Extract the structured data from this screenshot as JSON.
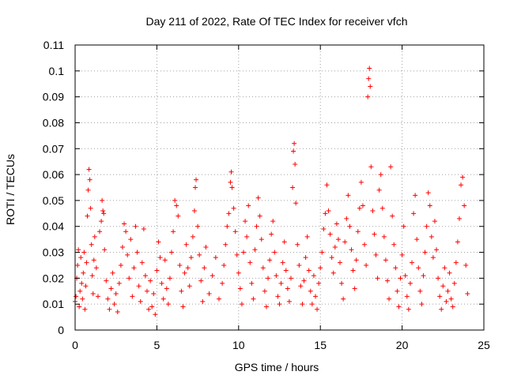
{
  "chart_data": {
    "type": "scatter",
    "title": "Day 211 of 2022, Rate Of TEC Index for receiver vfch",
    "xlabel": "GPS time / hours",
    "ylabel": "ROTI / TECUs",
    "xlim": [
      0,
      25
    ],
    "ylim": [
      0,
      0.11
    ],
    "x_ticks": [
      0,
      5,
      10,
      15,
      20,
      25
    ],
    "x_tick_labels": [
      "0",
      "5",
      "10",
      "15",
      "20",
      "25"
    ],
    "y_ticks": [
      0,
      0.01,
      0.02,
      0.03,
      0.04,
      0.05,
      0.06,
      0.07,
      0.08,
      0.09,
      0.1,
      0.11
    ],
    "y_tick_labels": [
      "0",
      "0.01",
      "0.02",
      "0.03",
      "0.04",
      "0.05",
      "0.06",
      "0.07",
      "0.08",
      "0.09",
      "0.1",
      "0.11"
    ],
    "grid": true,
    "marker": "+",
    "color": "#ff0000",
    "series": [
      {
        "name": "ROTI",
        "points": [
          [
            0.0,
            0.011
          ],
          [
            0.05,
            0.013
          ],
          [
            0.1,
            0.02
          ],
          [
            0.15,
            0.025
          ],
          [
            0.2,
            0.031
          ],
          [
            0.25,
            0.009
          ],
          [
            0.3,
            0.015
          ],
          [
            0.35,
            0.028
          ],
          [
            0.4,
            0.018
          ],
          [
            0.45,
            0.012
          ],
          [
            0.5,
            0.022
          ],
          [
            0.55,
            0.03
          ],
          [
            0.6,
            0.008
          ],
          [
            0.65,
            0.017
          ],
          [
            0.7,
            0.026
          ],
          [
            0.75,
            0.044
          ],
          [
            0.8,
            0.054
          ],
          [
            0.85,
            0.062
          ],
          [
            0.9,
            0.058
          ],
          [
            0.95,
            0.047
          ],
          [
            1.0,
            0.033
          ],
          [
            1.05,
            0.021
          ],
          [
            1.1,
            0.014
          ],
          [
            1.15,
            0.027
          ],
          [
            1.2,
            0.036
          ],
          [
            1.3,
            0.024
          ],
          [
            1.4,
            0.013
          ],
          [
            1.5,
            0.038
          ],
          [
            1.6,
            0.042
          ],
          [
            1.65,
            0.05
          ],
          [
            1.7,
            0.046
          ],
          [
            1.75,
            0.045
          ],
          [
            1.8,
            0.031
          ],
          [
            1.9,
            0.019
          ],
          [
            2.0,
            0.012
          ],
          [
            2.1,
            0.008
          ],
          [
            2.2,
            0.016
          ],
          [
            2.3,
            0.022
          ],
          [
            2.4,
            0.01
          ],
          [
            2.5,
            0.014
          ],
          [
            2.6,
            0.007
          ],
          [
            2.7,
            0.018
          ],
          [
            2.8,
            0.025
          ],
          [
            2.9,
            0.032
          ],
          [
            3.0,
            0.041
          ],
          [
            3.1,
            0.038
          ],
          [
            3.2,
            0.029
          ],
          [
            3.3,
            0.02
          ],
          [
            3.4,
            0.035
          ],
          [
            3.5,
            0.013
          ],
          [
            3.6,
            0.024
          ],
          [
            3.7,
            0.04
          ],
          [
            3.8,
            0.03
          ],
          [
            3.9,
            0.017
          ],
          [
            4.0,
            0.011
          ],
          [
            4.1,
            0.026
          ],
          [
            4.2,
            0.039
          ],
          [
            4.3,
            0.021
          ],
          [
            4.4,
            0.015
          ],
          [
            4.5,
            0.008
          ],
          [
            4.6,
            0.019
          ],
          [
            4.7,
            0.009
          ],
          [
            4.8,
            0.014
          ],
          [
            4.9,
            0.006
          ],
          [
            5.0,
            0.023
          ],
          [
            5.1,
            0.034
          ],
          [
            5.2,
            0.028
          ],
          [
            5.3,
            0.018
          ],
          [
            5.4,
            0.012
          ],
          [
            5.5,
            0.027
          ],
          [
            5.6,
            0.016
          ],
          [
            5.7,
            0.01
          ],
          [
            5.8,
            0.02
          ],
          [
            5.9,
            0.03
          ],
          [
            6.0,
            0.038
          ],
          [
            6.1,
            0.05
          ],
          [
            6.2,
            0.048
          ],
          [
            6.3,
            0.044
          ],
          [
            6.4,
            0.025
          ],
          [
            6.5,
            0.015
          ],
          [
            6.6,
            0.009
          ],
          [
            6.7,
            0.022
          ],
          [
            6.8,
            0.033
          ],
          [
            6.9,
            0.024
          ],
          [
            7.0,
            0.017
          ],
          [
            7.1,
            0.028
          ],
          [
            7.2,
            0.036
          ],
          [
            7.3,
            0.046
          ],
          [
            7.35,
            0.055
          ],
          [
            7.4,
            0.058
          ],
          [
            7.5,
            0.04
          ],
          [
            7.6,
            0.029
          ],
          [
            7.7,
            0.019
          ],
          [
            7.8,
            0.011
          ],
          [
            7.9,
            0.024
          ],
          [
            8.0,
            0.032
          ],
          [
            8.2,
            0.014
          ],
          [
            8.4,
            0.021
          ],
          [
            8.6,
            0.028
          ],
          [
            8.8,
            0.012
          ],
          [
            9.0,
            0.018
          ],
          [
            9.1,
            0.025
          ],
          [
            9.2,
            0.033
          ],
          [
            9.3,
            0.04
          ],
          [
            9.4,
            0.045
          ],
          [
            9.5,
            0.057
          ],
          [
            9.55,
            0.061
          ],
          [
            9.6,
            0.055
          ],
          [
            9.7,
            0.047
          ],
          [
            9.8,
            0.038
          ],
          [
            9.9,
            0.029
          ],
          [
            10.0,
            0.022
          ],
          [
            10.1,
            0.016
          ],
          [
            10.2,
            0.01
          ],
          [
            10.3,
            0.03
          ],
          [
            10.4,
            0.042
          ],
          [
            10.5,
            0.036
          ],
          [
            10.6,
            0.048
          ],
          [
            10.7,
            0.026
          ],
          [
            10.8,
            0.018
          ],
          [
            10.9,
            0.012
          ],
          [
            11.0,
            0.031
          ],
          [
            11.1,
            0.04
          ],
          [
            11.2,
            0.051
          ],
          [
            11.3,
            0.044
          ],
          [
            11.4,
            0.035
          ],
          [
            11.5,
            0.024
          ],
          [
            11.6,
            0.015
          ],
          [
            11.7,
            0.009
          ],
          [
            11.8,
            0.02
          ],
          [
            11.9,
            0.027
          ],
          [
            12.0,
            0.037
          ],
          [
            12.1,
            0.042
          ],
          [
            12.2,
            0.03
          ],
          [
            12.3,
            0.021
          ],
          [
            12.4,
            0.013
          ],
          [
            12.5,
            0.01
          ],
          [
            12.6,
            0.018
          ],
          [
            12.7,
            0.026
          ],
          [
            12.8,
            0.034
          ],
          [
            12.9,
            0.023
          ],
          [
            13.0,
            0.016
          ],
          [
            13.1,
            0.011
          ],
          [
            13.2,
            0.02
          ],
          [
            13.3,
            0.055
          ],
          [
            13.35,
            0.069
          ],
          [
            13.4,
            0.072
          ],
          [
            13.45,
            0.064
          ],
          [
            13.5,
            0.049
          ],
          [
            13.6,
            0.033
          ],
          [
            13.7,
            0.025
          ],
          [
            13.8,
            0.017
          ],
          [
            13.9,
            0.01
          ],
          [
            14.0,
            0.019
          ],
          [
            14.1,
            0.028
          ],
          [
            14.2,
            0.036
          ],
          [
            14.3,
            0.023
          ],
          [
            14.4,
            0.015
          ],
          [
            14.5,
            0.01
          ],
          [
            14.6,
            0.021
          ],
          [
            14.7,
            0.013
          ],
          [
            14.8,
            0.008
          ],
          [
            14.9,
            0.018
          ],
          [
            15.0,
            0.024
          ],
          [
            15.1,
            0.03
          ],
          [
            15.2,
            0.039
          ],
          [
            15.3,
            0.045
          ],
          [
            15.4,
            0.056
          ],
          [
            15.5,
            0.046
          ],
          [
            15.6,
            0.037
          ],
          [
            15.7,
            0.028
          ],
          [
            15.8,
            0.022
          ],
          [
            15.9,
            0.032
          ],
          [
            16.0,
            0.041
          ],
          [
            16.1,
            0.035
          ],
          [
            16.2,
            0.026
          ],
          [
            16.3,
            0.018
          ],
          [
            16.4,
            0.012
          ],
          [
            16.5,
            0.034
          ],
          [
            16.6,
            0.043
          ],
          [
            16.7,
            0.052
          ],
          [
            16.8,
            0.04
          ],
          [
            16.9,
            0.031
          ],
          [
            17.0,
            0.023
          ],
          [
            17.1,
            0.016
          ],
          [
            17.2,
            0.027
          ],
          [
            17.3,
            0.038
          ],
          [
            17.4,
            0.047
          ],
          [
            17.5,
            0.057
          ],
          [
            17.6,
            0.048
          ],
          [
            17.7,
            0.033
          ],
          [
            17.8,
            0.025
          ],
          [
            17.9,
            0.09
          ],
          [
            17.95,
            0.097
          ],
          [
            18.0,
            0.101
          ],
          [
            18.05,
            0.094
          ],
          [
            18.1,
            0.063
          ],
          [
            18.2,
            0.046
          ],
          [
            18.3,
            0.037
          ],
          [
            18.4,
            0.029
          ],
          [
            18.5,
            0.02
          ],
          [
            18.6,
            0.054
          ],
          [
            18.7,
            0.06
          ],
          [
            18.8,
            0.047
          ],
          [
            18.9,
            0.036
          ],
          [
            19.0,
            0.027
          ],
          [
            19.1,
            0.019
          ],
          [
            19.2,
            0.012
          ],
          [
            19.3,
            0.063
          ],
          [
            19.4,
            0.044
          ],
          [
            19.5,
            0.033
          ],
          [
            19.6,
            0.024
          ],
          [
            19.7,
            0.015
          ],
          [
            19.8,
            0.009
          ],
          [
            19.9,
            0.02
          ],
          [
            20.0,
            0.029
          ],
          [
            20.1,
            0.04
          ],
          [
            20.2,
            0.021
          ],
          [
            20.3,
            0.013
          ],
          [
            20.4,
            0.008
          ],
          [
            20.5,
            0.018
          ],
          [
            20.6,
            0.026
          ],
          [
            20.7,
            0.045
          ],
          [
            20.8,
            0.052
          ],
          [
            20.9,
            0.035
          ],
          [
            21.0,
            0.024
          ],
          [
            21.1,
            0.015
          ],
          [
            21.2,
            0.01
          ],
          [
            21.3,
            0.021
          ],
          [
            21.4,
            0.03
          ],
          [
            21.5,
            0.04
          ],
          [
            21.6,
            0.053
          ],
          [
            21.7,
            0.048
          ],
          [
            21.8,
            0.036
          ],
          [
            21.9,
            0.028
          ],
          [
            22.0,
            0.042
          ],
          [
            22.1,
            0.031
          ],
          [
            22.2,
            0.02
          ],
          [
            22.3,
            0.013
          ],
          [
            22.4,
            0.008
          ],
          [
            22.5,
            0.017
          ],
          [
            22.6,
            0.024
          ],
          [
            22.7,
            0.011
          ],
          [
            22.8,
            0.015
          ],
          [
            22.9,
            0.022
          ],
          [
            23.0,
            0.012
          ],
          [
            23.1,
            0.009
          ],
          [
            23.2,
            0.018
          ],
          [
            23.3,
            0.026
          ],
          [
            23.4,
            0.034
          ],
          [
            23.5,
            0.043
          ],
          [
            23.6,
            0.056
          ],
          [
            23.7,
            0.059
          ],
          [
            23.8,
            0.048
          ],
          [
            23.9,
            0.025
          ],
          [
            24.0,
            0.014
          ]
        ]
      }
    ]
  }
}
